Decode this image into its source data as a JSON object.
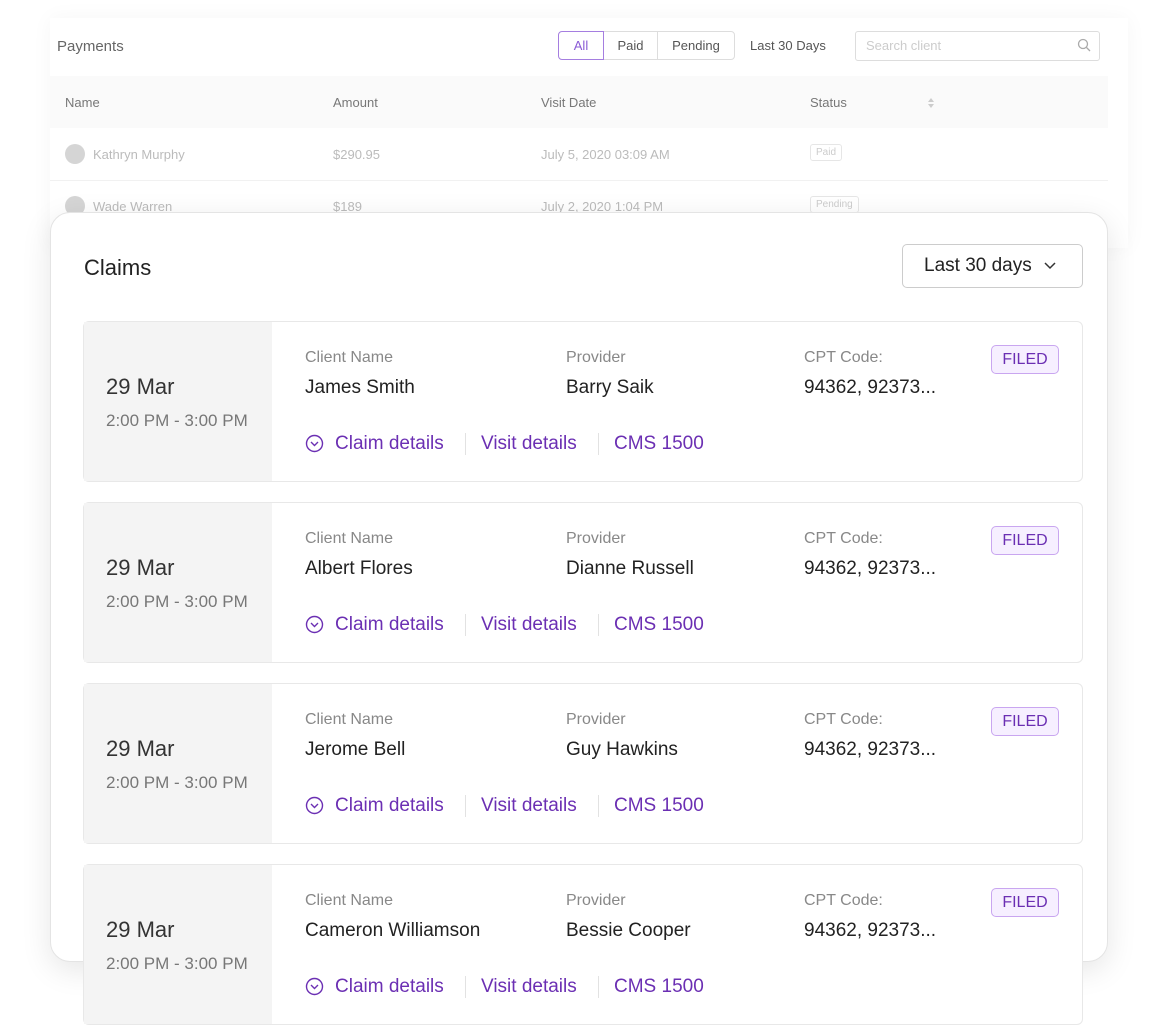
{
  "payments": {
    "title": "Payments",
    "filters": [
      "All",
      "Paid",
      "Pending"
    ],
    "range": "Last 30 Days",
    "search_placeholder": "Search client",
    "columns": [
      "Name",
      "Amount",
      "Visit Date",
      "Status"
    ],
    "rows": [
      [
        "Kathryn Murphy",
        "$290.95",
        "July 5, 2020 03:09 AM",
        "Paid"
      ],
      [
        "Wade Warren",
        "$189",
        "July 2, 2020 1:04 PM",
        "Pending"
      ]
    ]
  },
  "claims": {
    "title": "Claims",
    "range": "Last 30 days",
    "labels": {
      "client": "Client Name",
      "provider": "Provider",
      "cpt": "CPT Code:"
    },
    "links": [
      "Claim details",
      "Visit details",
      "CMS 1500"
    ],
    "items": [
      {
        "date": "29 Mar",
        "time": "2:00 PM - 3:00 PM",
        "client": "James Smith",
        "provider": "Barry Saik",
        "cpt": "94362, 92373...",
        "status": "FILED"
      },
      {
        "date": "29 Mar",
        "time": "2:00 PM - 3:00 PM",
        "client": "Albert Flores",
        "provider": "Dianne Russell",
        "cpt": "94362, 92373...",
        "status": "FILED"
      },
      {
        "date": "29 Mar",
        "time": "2:00 PM - 3:00 PM",
        "client": "Jerome Bell",
        "provider": "Guy Hawkins",
        "cpt": "94362, 92373...",
        "status": "FILED"
      },
      {
        "date": "29 Mar",
        "time": "2:00 PM - 3:00 PM",
        "client": "Cameron Williamson",
        "provider": "Bessie Cooper",
        "cpt": "94362, 92373...",
        "status": "FILED"
      }
    ]
  }
}
